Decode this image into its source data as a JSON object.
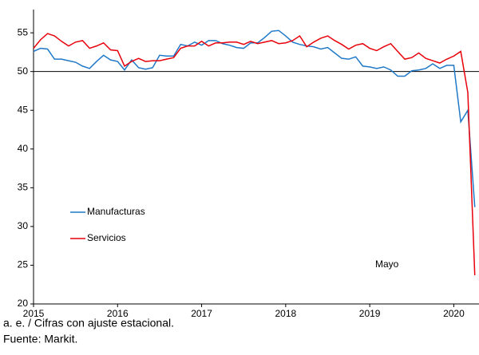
{
  "chart_data": {
    "type": "line",
    "annotation": "Mayo",
    "footnotes": [
      "a. e. / Cifras con ajuste estacional.",
      "Fuente: Markit."
    ],
    "x": [
      2015,
      2015.083,
      2015.167,
      2015.25,
      2015.333,
      2015.417,
      2015.5,
      2015.583,
      2015.667,
      2015.75,
      2015.833,
      2015.917,
      2016,
      2016.083,
      2016.167,
      2016.25,
      2016.333,
      2016.417,
      2016.5,
      2016.583,
      2016.667,
      2016.75,
      2016.833,
      2016.917,
      2017,
      2017.083,
      2017.167,
      2017.25,
      2017.333,
      2017.417,
      2017.5,
      2017.583,
      2017.667,
      2017.75,
      2017.833,
      2017.917,
      2018,
      2018.083,
      2018.167,
      2018.25,
      2018.333,
      2018.417,
      2018.5,
      2018.583,
      2018.667,
      2018.75,
      2018.833,
      2018.917,
      2019,
      2019.083,
      2019.167,
      2019.25,
      2019.333,
      2019.417,
      2019.5,
      2019.583,
      2019.667,
      2019.75,
      2019.833,
      2019.917,
      2020,
      2020.083,
      2020.167,
      2020.25
    ],
    "series": [
      {
        "name": "Manufacturas",
        "color": "#1f78c8",
        "values": [
          52.6,
          53.0,
          52.9,
          51.6,
          51.6,
          51.4,
          51.2,
          50.7,
          50.4,
          51.3,
          52.1,
          51.5,
          51.3,
          50.2,
          51.5,
          50.5,
          50.3,
          50.5,
          52.1,
          52.0,
          52.0,
          53.5,
          53.3,
          53.8,
          53.4,
          54.0,
          54.0,
          53.6,
          53.4,
          53.1,
          53.0,
          53.7,
          53.7,
          54.4,
          55.2,
          55.3,
          54.6,
          53.8,
          53.5,
          53.3,
          53.2,
          52.9,
          53.1,
          52.4,
          51.7,
          51.6,
          51.9,
          50.7,
          50.6,
          50.4,
          50.6,
          50.2,
          49.4,
          49.4,
          50.1,
          50.2,
          50.4,
          51.0,
          50.4,
          50.8,
          50.8,
          43.5,
          45.0,
          32.5
        ]
      },
      {
        "name": "Servicios",
        "color": "#e8000b",
        "values": [
          53.0,
          54.1,
          54.9,
          54.6,
          53.9,
          53.3,
          53.8,
          54.0,
          53.0,
          53.3,
          53.7,
          52.8,
          52.7,
          50.7,
          51.3,
          51.7,
          51.3,
          51.4,
          51.4,
          51.6,
          51.8,
          53.0,
          53.3,
          53.3,
          53.9,
          53.3,
          53.7,
          53.7,
          53.8,
          53.8,
          53.5,
          53.9,
          53.6,
          53.8,
          54.0,
          53.6,
          53.7,
          54.0,
          54.6,
          53.2,
          53.8,
          54.3,
          54.6,
          54.0,
          53.5,
          52.9,
          53.4,
          53.6,
          53.0,
          52.7,
          53.2,
          53.6,
          52.6,
          51.6,
          51.8,
          52.4,
          51.7,
          51.4,
          51.1,
          51.6,
          52.0,
          52.6,
          47.3,
          23.7
        ]
      }
    ],
    "reference_line": 50,
    "xlim": [
      2015,
      2020.3
    ],
    "xticks": [
      2015,
      2016,
      2017,
      2018,
      2019,
      2020
    ],
    "ylim": [
      20,
      58
    ],
    "yticks": [
      20,
      25,
      30,
      35,
      40,
      45,
      50,
      55
    ],
    "grid": false,
    "legend": "left"
  }
}
